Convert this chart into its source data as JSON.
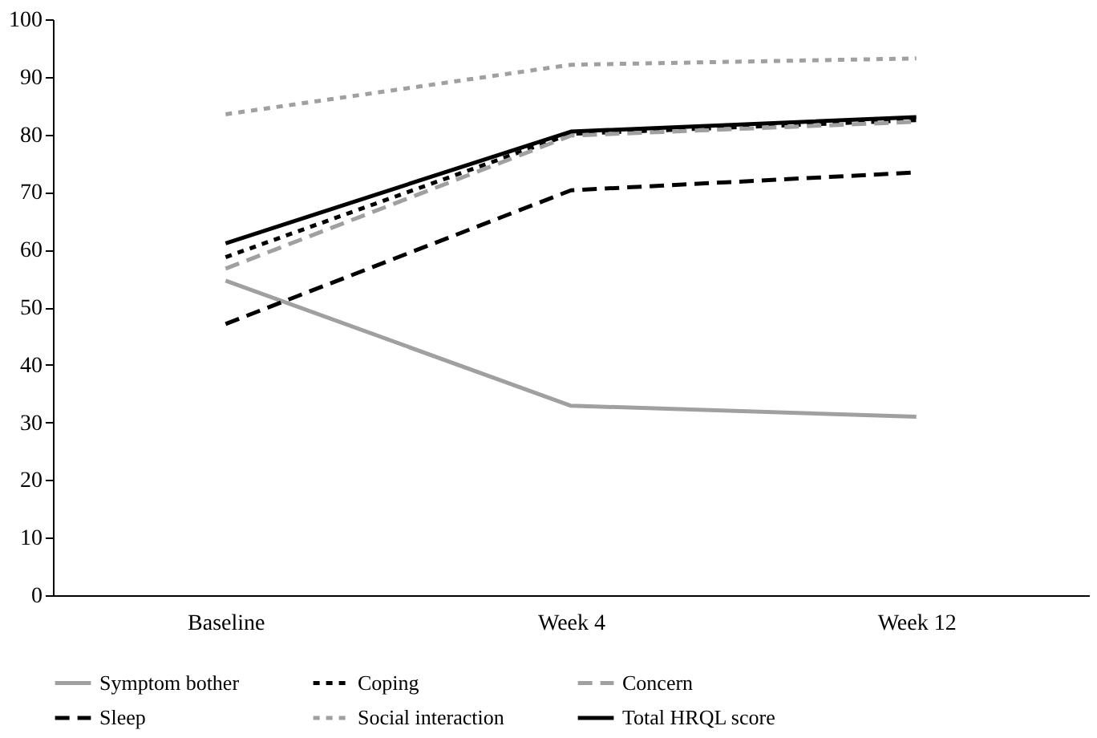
{
  "chart_data": {
    "type": "line",
    "categories": [
      "Baseline",
      "Week 4",
      "Week 12"
    ],
    "ylim": [
      0,
      100
    ],
    "yticks": [
      0,
      10,
      20,
      30,
      40,
      50,
      60,
      70,
      80,
      90,
      100
    ],
    "grid": false,
    "legend": "bottom",
    "marker": "none",
    "series": [
      {
        "name": "Symptom bother",
        "color": "#a0a0a0",
        "line_style": "solid",
        "values": [
          54.6,
          32.9,
          31.0
        ]
      },
      {
        "name": "Coping",
        "color": "#000000",
        "line_style": "dotted",
        "values": [
          58.7,
          80.1,
          82.5
        ]
      },
      {
        "name": "Concern",
        "color": "#a0a0a0",
        "line_style": "dashed",
        "values": [
          56.7,
          79.8,
          82.2
        ]
      },
      {
        "name": "Sleep",
        "color": "#000000",
        "line_style": "dashed",
        "values": [
          47.1,
          70.3,
          73.4
        ]
      },
      {
        "name": "Social interaction",
        "color": "#a0a0a0",
        "line_style": "dotted",
        "values": [
          83.5,
          92.1,
          93.2
        ]
      },
      {
        "name": "Total HRQL score",
        "color": "#000000",
        "line_style": "solid",
        "values": [
          61.1,
          80.5,
          83.0
        ]
      }
    ]
  }
}
